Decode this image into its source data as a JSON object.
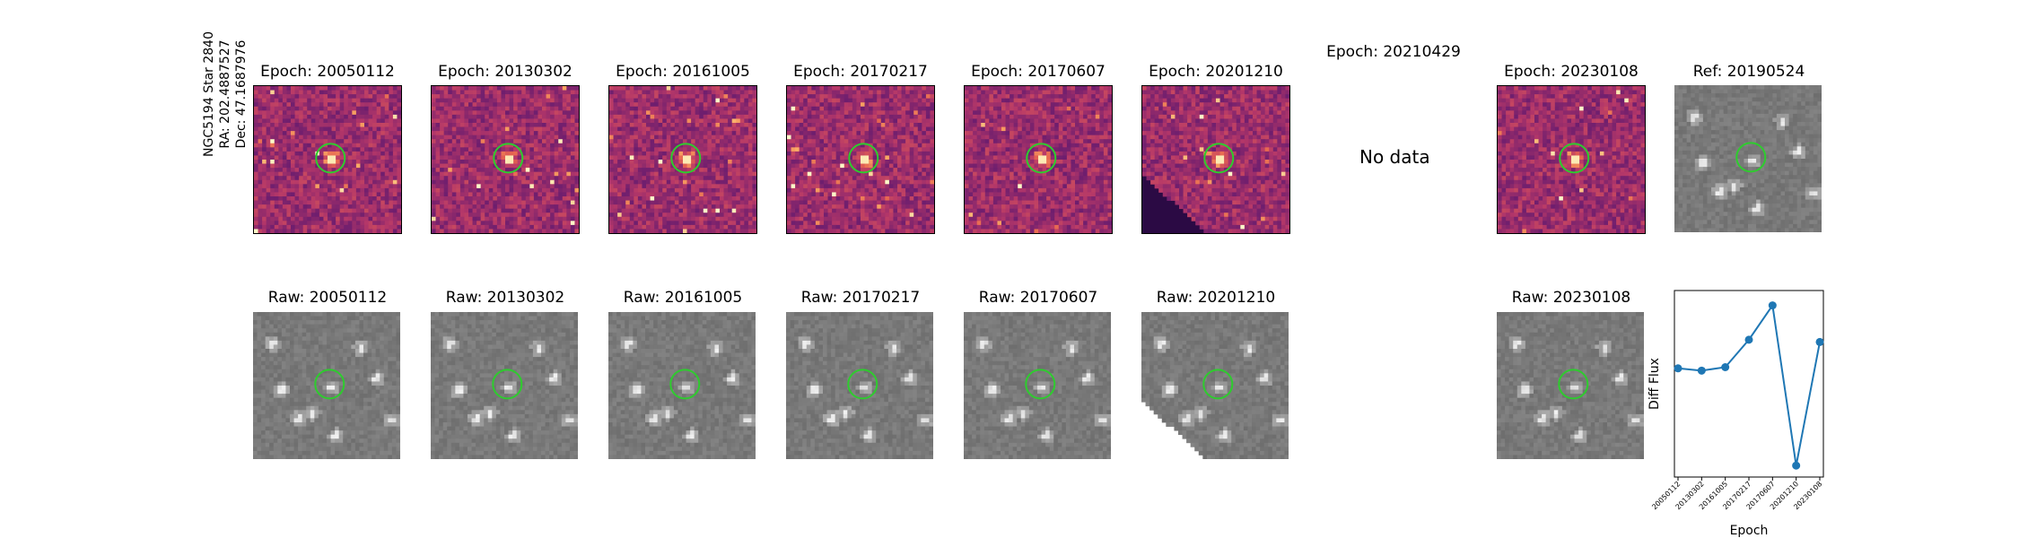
{
  "star": {
    "line1": "NGC5194 Star 2840",
    "line2": "RA: 202.4887527",
    "line3": "Dec: 47.1687976"
  },
  "diff_titles": [
    "Epoch: 20050112",
    "Epoch: 20130302",
    "Epoch: 20161005",
    "Epoch: 20170217",
    "Epoch: 20170607",
    "Epoch: 20201210",
    "Epoch: 20210429",
    "Epoch: 20230108"
  ],
  "ref_title": "Ref: 20190524",
  "no_data_text": "No data",
  "raw_titles": [
    "Raw: 20050112",
    "Raw: 20130302",
    "Raw: 20161005",
    "Raw: 20170217",
    "Raw: 20170607",
    "Raw: 20201210",
    "Raw: 20230108"
  ],
  "colors": {
    "marker_circle": "#2ecc2e",
    "line": "#1f77b4"
  },
  "chart_data": {
    "type": "line",
    "x": [
      "20050112",
      "20130302",
      "20161005",
      "20170217",
      "20170607",
      "20201210",
      "20230108"
    ],
    "values": [
      0.3,
      0.28,
      0.31,
      0.55,
      0.85,
      -0.55,
      0.53
    ],
    "xlabel": "Epoch",
    "ylabel": "Diff Flux",
    "ylim": [
      -0.65,
      0.98
    ],
    "markers": true,
    "grid": false
  }
}
